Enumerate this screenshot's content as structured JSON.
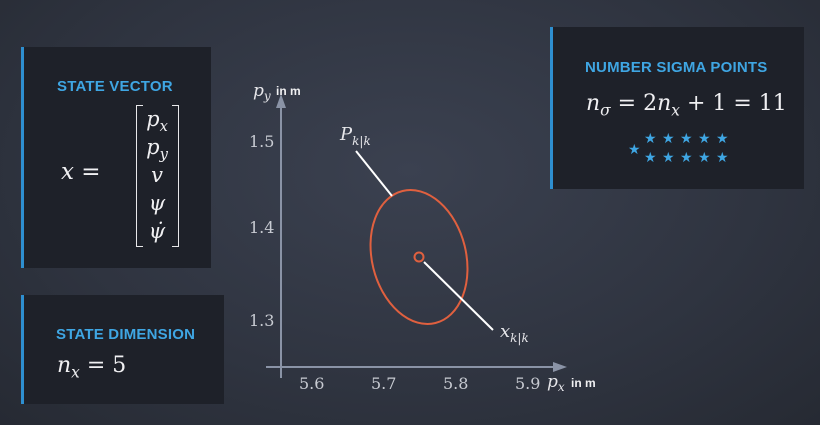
{
  "state_vector": {
    "title": "STATE VECTOR",
    "lhs": "x =",
    "entries": [
      {
        "base": "p",
        "sub": "x"
      },
      {
        "base": "p",
        "sub": "y"
      },
      {
        "base": "v",
        "sub": ""
      },
      {
        "base": "ψ",
        "sub": ""
      },
      {
        "base": "ψ̇",
        "sub": ""
      }
    ]
  },
  "state_dimension": {
    "title": "STATE DIMENSION",
    "formula": {
      "base": "n",
      "sub": "x",
      "rest": " = 5"
    }
  },
  "sigma_points": {
    "title": "NUMBER SIGMA POINTS",
    "formula": {
      "base": "n",
      "sub": "σ",
      "rest1": " = 2",
      "base2": "n",
      "sub2": "x",
      "rest2": " + 1 = 11"
    },
    "star_count": 11,
    "star_color": "#3fa6e3"
  },
  "plot": {
    "y_var": {
      "base": "p",
      "sub": "y"
    },
    "y_unit": "in m",
    "x_var": {
      "base": "p",
      "sub": "x"
    },
    "x_unit": "in m",
    "y_ticks": [
      "1.5",
      "1.4",
      "1.3"
    ],
    "x_ticks": [
      "5.6",
      "5.7",
      "5.8",
      "5.9"
    ],
    "covariance_label": {
      "base": "P",
      "sub": "k|k"
    },
    "mean_label": {
      "base": "x",
      "sub": "k|k"
    },
    "ellipse_color": "#e0603f"
  }
}
